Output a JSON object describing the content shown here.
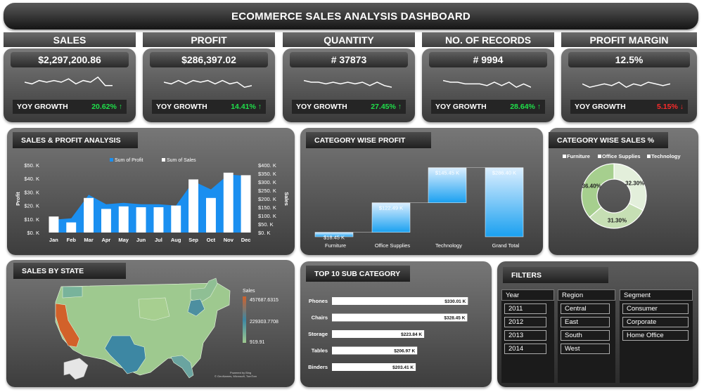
{
  "dashboard_title": "ECOMMERCE SALES ANALYSIS DASHBOARD",
  "kpis": [
    {
      "header": "SALES",
      "value": "$2,297,200.86",
      "yoy_label": "YOY GROWTH",
      "yoy": "20.62% ↑",
      "yoy_color": "#1fe04a",
      "spark": [
        5,
        4,
        6,
        5,
        6,
        5,
        7,
        4,
        6,
        5,
        8,
        3,
        3
      ]
    },
    {
      "header": "PROFIT",
      "value": "$286,397.02",
      "yoy_label": "YOY GROWTH",
      "yoy": "14.41% ↑",
      "yoy_color": "#1fe04a",
      "spark": [
        5,
        4,
        6,
        4,
        6,
        5,
        6,
        4,
        6,
        4,
        5,
        2,
        3
      ]
    },
    {
      "header": "QUANTITY",
      "value": "# 37873",
      "yoy_label": "YOY GROWTH",
      "yoy": "27.45% ↑",
      "yoy_color": "#1fe04a",
      "spark": [
        6,
        5,
        5,
        4,
        5,
        4,
        5,
        4,
        5,
        3,
        5,
        3,
        2
      ]
    },
    {
      "header": "NO. OF RECORDS",
      "value": "# 9994",
      "yoy_label": "YOY GROWTH",
      "yoy": "28.64% ↑",
      "yoy_color": "#1fe04a",
      "spark": [
        6,
        5,
        5,
        4,
        4,
        4,
        3,
        5,
        3,
        5,
        2,
        4,
        2
      ]
    },
    {
      "header": "PROFIT MARGIN",
      "value": "12.5%",
      "yoy_label": "YOY GROWTH",
      "yoy": "5.15% ↓",
      "yoy_color": "#ff2a2a",
      "spark": [
        4,
        2,
        3,
        4,
        3,
        5,
        2,
        4,
        3,
        5,
        4,
        3,
        4
      ]
    }
  ],
  "sales_profit": {
    "title": "SALES & PROFIT ANALYSIS",
    "legend_profit": "Sum of Profit",
    "legend_sales": "Sum of Sales",
    "ylabel_left": "Profit",
    "ylabel_right": "Sales",
    "left_ticks": [
      "$50. K",
      "$40. K",
      "$30. K",
      "$20. K",
      "$10. K",
      "$0. K"
    ],
    "right_ticks": [
      "$400. K",
      "$350. K",
      "$300. K",
      "$250. K",
      "$200. K",
      "$150. K",
      "$100. K",
      "$50. K",
      "$0. K"
    ]
  },
  "category_profit": {
    "title": "CATEGORY WISE PROFIT"
  },
  "category_sales": {
    "title": "CATEGORY WISE SALES %",
    "legend": [
      "Furniture",
      "Office Supplies",
      "Technology"
    ]
  },
  "map": {
    "title": "SALES BY STATE",
    "legend_title": "Sales",
    "legend_max": "457687.6315",
    "legend_mid": "229303.7708",
    "legend_min": "919.91",
    "credit_1": "Powered by Bing",
    "credit_2": "© GeoNames, Microsoft, TomTom"
  },
  "subcategory": {
    "title": "TOP 10 SUB CATEGORY"
  },
  "filters": {
    "title": "FILTERS",
    "year_label": "Year",
    "years": [
      "2011",
      "2012",
      "2013",
      "2014"
    ],
    "region_label": "Region",
    "regions": [
      "Central",
      "East",
      "South",
      "West"
    ],
    "segment_label": "Segment",
    "segments": [
      "Consumer",
      "Corporate",
      "Home Office"
    ]
  },
  "chart_data": [
    {
      "type": "bar",
      "title": "SALES & PROFIT ANALYSIS",
      "categories": [
        "Jan",
        "Feb",
        "Mar",
        "Apr",
        "May",
        "Jun",
        "Jul",
        "Aug",
        "Sep",
        "Oct",
        "Nov",
        "Dec"
      ],
      "series": [
        {
          "name": "Sum of Sales",
          "type": "bar",
          "axis": "right",
          "values": [
            95000,
            60000,
            205000,
            140000,
            155000,
            150000,
            150000,
            160000,
            315000,
            205000,
            355000,
            340000
          ]
        },
        {
          "name": "Sum of Profit",
          "type": "area",
          "axis": "left",
          "values": [
            9500,
            10500,
            28000,
            21000,
            22000,
            21000,
            21000,
            20000,
            38000,
            32000,
            43000,
            42000
          ]
        }
      ],
      "ylim_left": [
        0,
        50000
      ],
      "ylim_right": [
        0,
        400000
      ]
    },
    {
      "type": "waterfall",
      "title": "CATEGORY WISE PROFIT",
      "categories": [
        "Furniture",
        "Office Supplies",
        "Technology",
        "Grand Total"
      ],
      "values": [
        18.45,
        122.49,
        145.45,
        286.4
      ],
      "labels": [
        "$18.45 K",
        "$122.49 K",
        "$145.45 K",
        "$286.40 K"
      ],
      "ylim": [
        0,
        300
      ]
    },
    {
      "type": "pie",
      "title": "CATEGORY WISE SALES %",
      "categories": [
        "Furniture",
        "Office Supplies",
        "Technology"
      ],
      "values": [
        32.3,
        31.3,
        36.4
      ],
      "labels": [
        "32.30%",
        "31.30%",
        "36.40%"
      ],
      "colors": [
        "#e3efdb",
        "#c6dfb4",
        "#a6cf8e"
      ]
    },
    {
      "type": "bar",
      "orientation": "horizontal",
      "title": "TOP 10 SUB CATEGORY",
      "categories": [
        "Phones",
        "Chairs",
        "Storage",
        "Tables",
        "Binders"
      ],
      "values": [
        330.01,
        328.45,
        223.84,
        206.97,
        203.41
      ],
      "labels": [
        "$330.01 K",
        "$328.45 K",
        "$223.84 K",
        "$206.97 K",
        "$203.41 K"
      ],
      "xlim": [
        0,
        350
      ]
    }
  ]
}
